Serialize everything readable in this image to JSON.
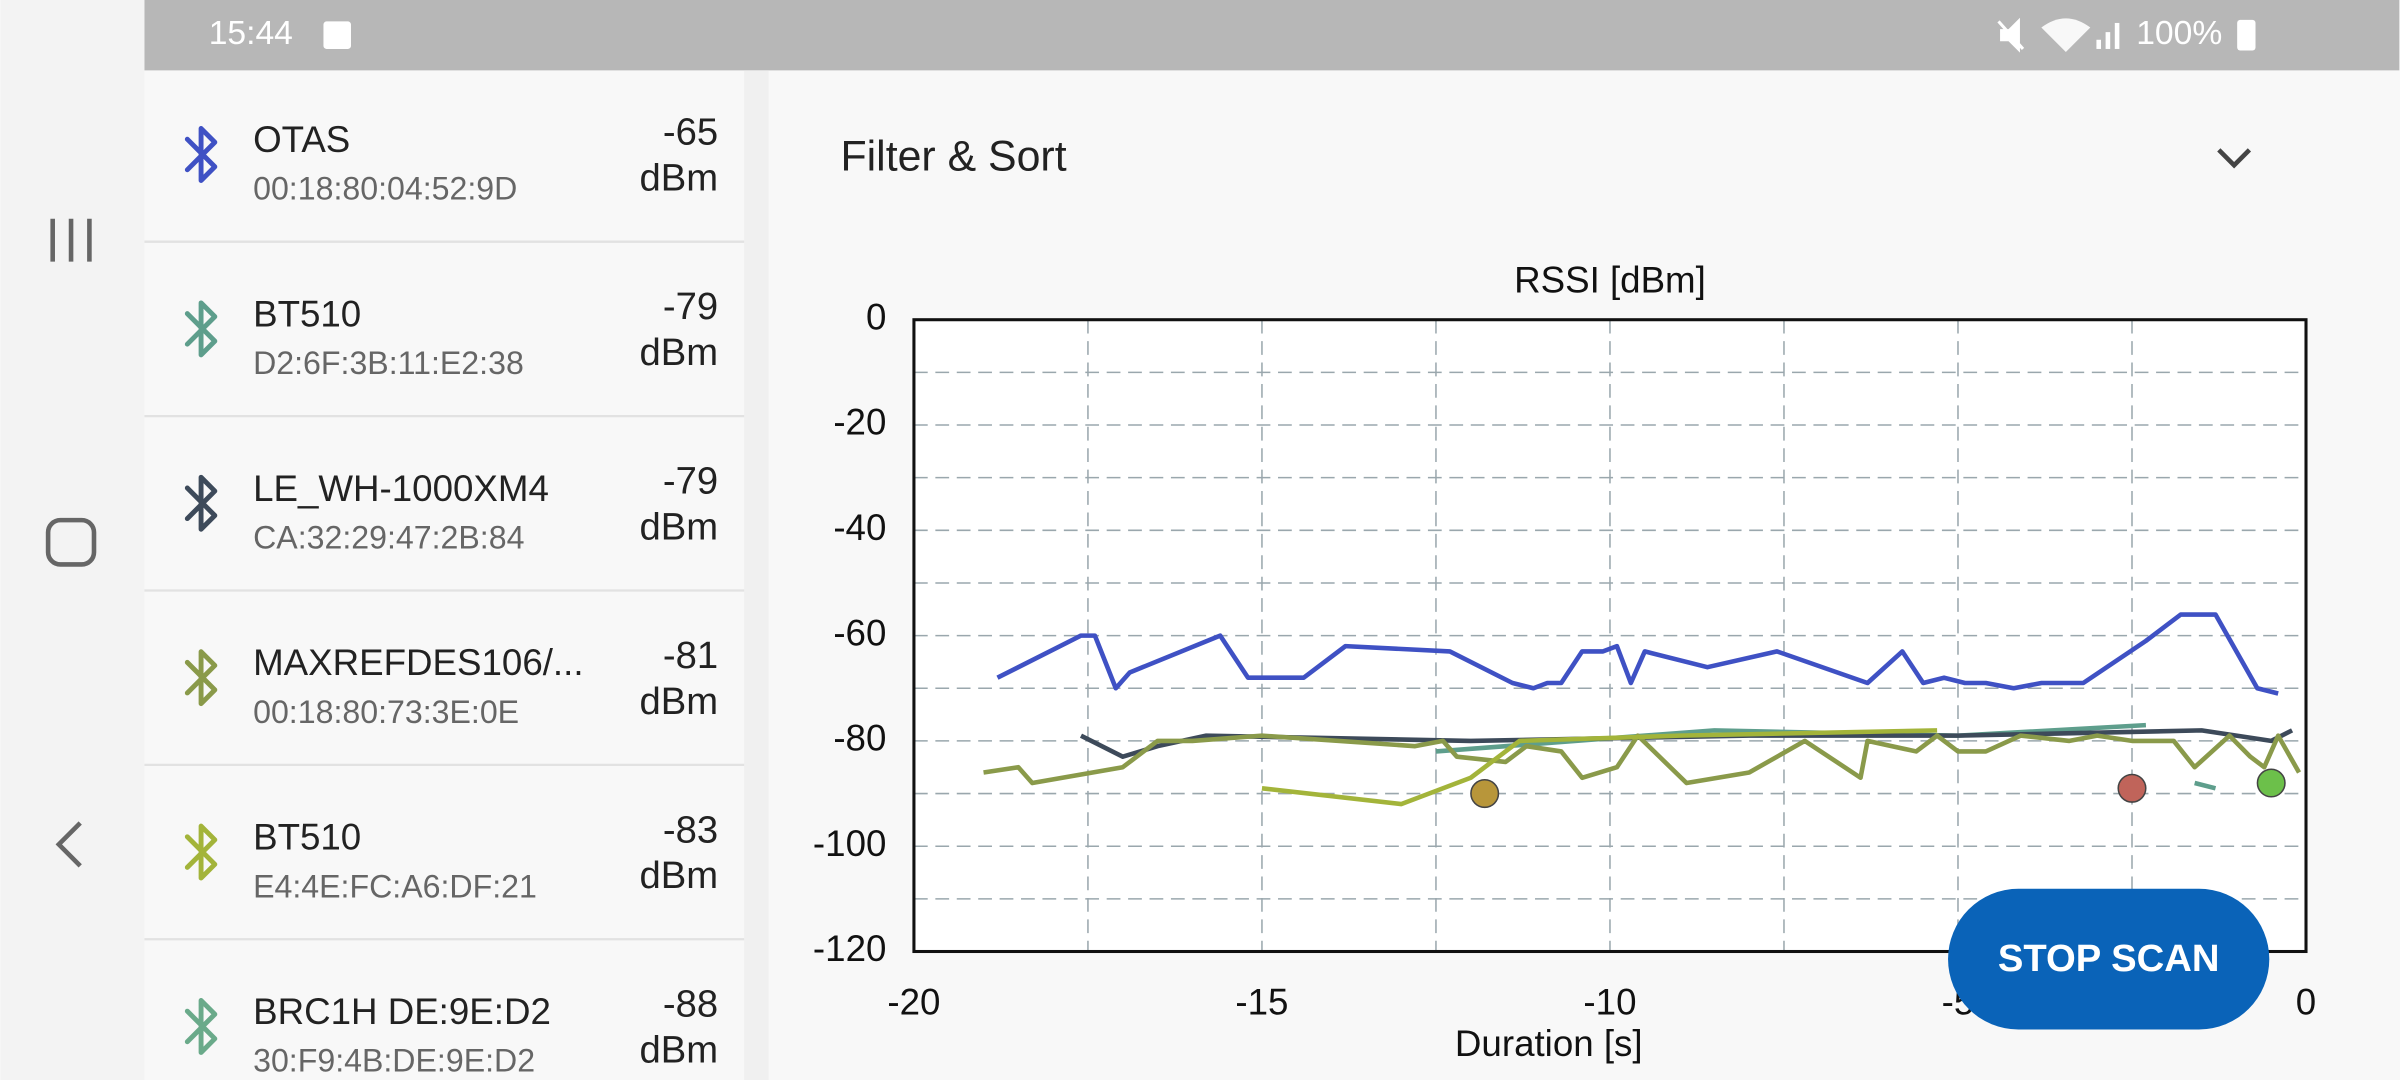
{
  "status_bar": {
    "time": "15:44",
    "battery": "100%"
  },
  "devices": [
    {
      "name": "OTAS",
      "address": "00:18:80:04:52:9D",
      "rssi": "-65",
      "color": "#3f51c4"
    },
    {
      "name": "BT510",
      "address": "D2:6F:3B:11:E2:38",
      "rssi": "-79",
      "color": "#5e9e8c"
    },
    {
      "name": "LE_WH-1000XM4",
      "address": "CA:32:29:47:2B:84",
      "rssi": "-79",
      "color": "#3d4a5a"
    },
    {
      "name": "MAXREFDES106/...",
      "address": "00:18:80:73:3E:0E",
      "rssi": "-81",
      "color": "#8a9a4a"
    },
    {
      "name": "BT510",
      "address": "E4:4E:FC:A6:DF:21",
      "rssi": "-83",
      "color": "#a3b43a"
    },
    {
      "name": "BRC1H DE:9E:D2",
      "address": "30:F9:4B:DE:9E:D2",
      "rssi": "-88",
      "color": "#6aaa8a"
    }
  ],
  "rssi_unit": "dBm",
  "filter_title": "Filter & Sort",
  "button": "STOP SCAN",
  "chart_data": {
    "type": "line",
    "title": "RSSI [dBm]",
    "x_label": "Duration [s]",
    "xlim": [
      -20,
      0
    ],
    "xticks": [
      -20,
      -15,
      -10,
      -5,
      0
    ],
    "x_minor_ticks": [
      -17.5,
      -12.5,
      -7.5,
      -2.5
    ],
    "ylim": [
      -120,
      0
    ],
    "yticks": [
      0,
      -20,
      -40,
      -60,
      -80,
      -100,
      -120
    ],
    "y_minor_ticks": [
      -10,
      -30,
      -50,
      -70,
      -90,
      -110
    ],
    "grid": true,
    "series": [
      {
        "color": "#3f51c4",
        "x": [
          -18.8,
          -17.6,
          -17.4,
          -17.1,
          -16.9,
          -15.6,
          -15.2,
          -14.4,
          -13.8,
          -12.3,
          -11.4,
          -11.1,
          -10.9,
          -10.7,
          -10.4,
          -10.1,
          -9.9,
          -9.7,
          -9.5,
          -8.6,
          -7.6,
          -6.3,
          -5.8,
          -5.5,
          -5.2,
          -4.9,
          -4.6,
          -4.2,
          -3.8,
          -3.2,
          -2.3,
          -2.0,
          -1.8,
          -1.3,
          -0.7,
          -0.4
        ],
        "values": [
          -68,
          -60,
          -60,
          -70,
          -67,
          -60,
          -68,
          -68,
          -62,
          -63,
          -69,
          -70,
          -69,
          -69,
          -63,
          -63,
          -62,
          -69,
          -63,
          -66,
          -63,
          -69,
          -63,
          -69,
          -68,
          -69,
          -69,
          -70,
          -69,
          -69,
          -61,
          -58,
          -56,
          -56,
          -70,
          -71
        ]
      },
      {
        "color": "#5e9e8c",
        "x": [
          -12.5,
          -11.5,
          -8.5,
          -5,
          -2.3,
          -1.9,
          -1.6,
          -1.3
        ],
        "values": [
          -82,
          -81,
          -78,
          -79,
          -77,
          null,
          -88,
          -89
        ]
      },
      {
        "color": "#3d4a5a",
        "x": [
          -17.6,
          -17,
          -16.5,
          -15.8,
          -12,
          -8,
          -5,
          -1.5,
          -0.5,
          -0.2
        ],
        "values": [
          -79,
          -83,
          -81,
          -79,
          -80,
          -79,
          -79,
          -78,
          -80,
          -78
        ]
      },
      {
        "color": "#8a9a4a",
        "x": [
          -19,
          -18.5,
          -18.3,
          -17,
          -16.5,
          -16,
          -15,
          -12.8,
          -12.4,
          -12.2,
          -11.5,
          -11.2,
          -10.7,
          -10.4,
          -9.9,
          -9.6,
          -8.9,
          -8.0,
          -7.2,
          -6.4,
          -6.3,
          -5.6,
          -5.3,
          -5.0,
          -4.6,
          -4.1,
          -3.4,
          -3.0,
          -2.5,
          -1.9,
          -1.6,
          -1.1,
          -0.8,
          -0.6,
          -0.4,
          -0.1
        ],
        "values": [
          -86,
          -85,
          -88,
          -85,
          -80,
          -80,
          -79,
          -81,
          -80,
          -83,
          -84,
          -81,
          -82,
          -87,
          -85,
          -79,
          -88,
          -86,
          -80,
          -87,
          -80,
          -82,
          -79,
          -82,
          -82,
          -79,
          -80,
          -79,
          -80,
          -80,
          -85,
          -79,
          -83,
          -85,
          -79,
          -86
        ]
      },
      {
        "color": "#a3b43a",
        "x": [
          -15,
          -13,
          -12,
          -11.3,
          -9,
          -5.3
        ],
        "values": [
          -89,
          -92,
          -87,
          -80,
          -79,
          -78
        ]
      }
    ],
    "points": [
      {
        "x": -11.8,
        "value": -90,
        "color": "#b8963a"
      },
      {
        "x": -2.5,
        "value": -89,
        "color": "#c0645a"
      },
      {
        "x": -0.5,
        "value": -88,
        "color": "#6cc04a"
      }
    ]
  }
}
